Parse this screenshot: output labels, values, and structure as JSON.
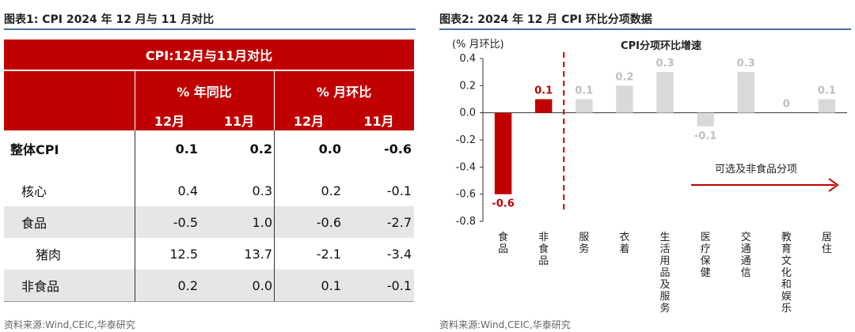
{
  "figure1": {
    "title": "图表1:  CPI 2024 年 12 月与 11 月对比",
    "source": "资料来源:Wind,CEIC,华泰研究",
    "table": {
      "header_title": "CPI:12月与11月对比",
      "group_headers": [
        "% 年同比",
        "% 月环比"
      ],
      "sub_headers": [
        "12月",
        "11月",
        "12月",
        "11月"
      ],
      "rows": [
        {
          "label": "整体CPI",
          "values": [
            "0.1",
            "0.2",
            "0.0",
            "-0.6"
          ]
        },
        {
          "label": "核心",
          "values": [
            "0.4",
            "0.3",
            "0.2",
            "-0.1"
          ]
        },
        {
          "label": "食品",
          "values": [
            "-0.5",
            "1.0",
            "-0.6",
            "-2.7"
          ]
        },
        {
          "label": "猪肉",
          "values": [
            "12.5",
            "13.7",
            "-2.1",
            "-3.4"
          ]
        },
        {
          "label": "非食品",
          "values": [
            "0.2",
            "0.0",
            "0.1",
            "-0.1"
          ]
        }
      ]
    }
  },
  "figure2": {
    "title": "图表2:   2024 年 12 月 CPI 环比分项数据",
    "source": "资料来源:Wind,CEIC,华泰研究",
    "annotation": "可选及非食品分项"
  },
  "chart_data": {
    "type": "bar",
    "title": "CPI分项环比增速",
    "ylabel": "(% 月环比)",
    "xlabel": "",
    "ylim": [
      -0.8,
      0.4
    ],
    "yticks": [
      0.4,
      0.2,
      0.0,
      -0.2,
      -0.4,
      -0.6,
      -0.8
    ],
    "ytick_labels": [
      "0.4",
      "0.2",
      "0.0",
      "-0.2",
      "-0.4",
      "-0.6",
      "-0.8"
    ],
    "categories": [
      "食品",
      "非食品",
      "服务",
      "衣着",
      "生活用品及服务",
      "医疗保健",
      "交通通信",
      "教育文化和娱乐",
      "居住"
    ],
    "values": [
      -0.6,
      0.1,
      0.1,
      0.2,
      0.3,
      -0.1,
      0.3,
      0.0,
      0.1
    ],
    "value_labels": [
      "-0.6",
      "0.1",
      "0.1",
      "0.2",
      "0.3",
      "-0.1",
      "0.3",
      "0",
      "0.1"
    ],
    "grid": false,
    "colors": {
      "highlight": "#c00000",
      "other": "#d9d9d9",
      "other_label": "#bfbfbf",
      "divider": "#c00000"
    }
  }
}
